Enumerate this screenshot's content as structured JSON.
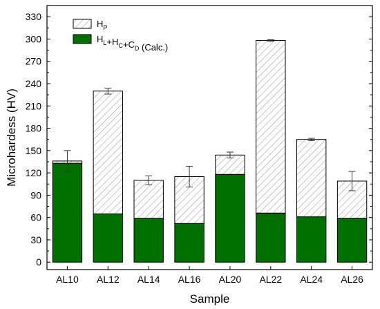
{
  "chart_data": {
    "type": "bar",
    "stacked": true,
    "categories": [
      "AL10",
      "AL12",
      "AL14",
      "AL16",
      "AL20",
      "AL22",
      "AL24",
      "AL26"
    ],
    "series": [
      {
        "name": "HL+HC+CD (Calc.)",
        "color": "#007000",
        "pattern": "solid",
        "values": [
          133,
          65,
          59,
          52,
          118,
          66,
          61,
          59
        ]
      },
      {
        "name": "HP",
        "color": "#ffffff",
        "pattern": "diagonal-hatch",
        "values": [
          3,
          165,
          51,
          63,
          26,
          232,
          104,
          50
        ]
      }
    ],
    "totals": [
      136,
      230,
      110,
      115,
      144,
      298,
      165,
      109
    ],
    "error_bars": [
      14,
      4,
      6,
      14,
      4,
      1,
      1.5,
      13
    ],
    "xlabel": "Sample",
    "ylabel": "Microhardess (HV)",
    "ylim": [
      -10,
      345
    ],
    "yticks": [
      0,
      30,
      60,
      90,
      120,
      150,
      180,
      210,
      240,
      270,
      300,
      330
    ],
    "legend_position": "top-left",
    "legend": [
      {
        "base": "H",
        "sub": "P"
      },
      {
        "parts": [
          {
            "base": "H",
            "sub": "L"
          },
          {
            "base": "+H",
            "sub": "C"
          },
          {
            "base": "+C",
            "sub": "D"
          },
          {
            "base": " (Calc.)",
            "sub": ""
          }
        ]
      }
    ],
    "grid": false
  }
}
